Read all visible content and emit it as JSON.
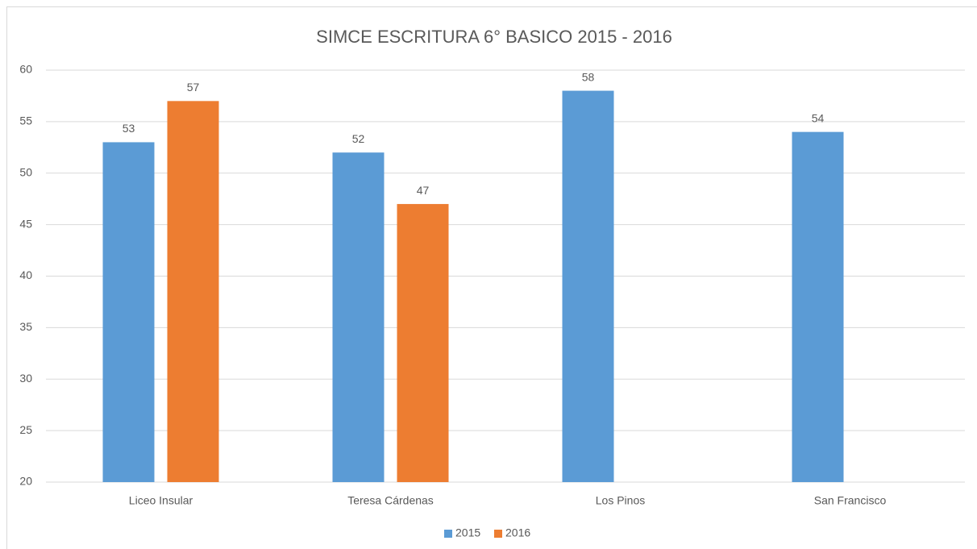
{
  "chart_data": {
    "type": "bar",
    "title": "SIMCE ESCRITURA 6° BASICO 2015 - 2016",
    "categories": [
      "Liceo Insular",
      "Teresa Cárdenas",
      "Los Pinos",
      "San Francisco"
    ],
    "series": [
      {
        "name": "2015",
        "color": "#5b9bd5",
        "values": [
          53,
          52,
          58,
          54
        ]
      },
      {
        "name": "2016",
        "color": "#ed7d31",
        "values": [
          57,
          47,
          null,
          null
        ]
      }
    ],
    "ylim": [
      20,
      60
    ],
    "yticks": [
      20,
      25,
      30,
      35,
      40,
      45,
      50,
      55,
      60
    ],
    "grid": true,
    "legend": "bottom"
  }
}
